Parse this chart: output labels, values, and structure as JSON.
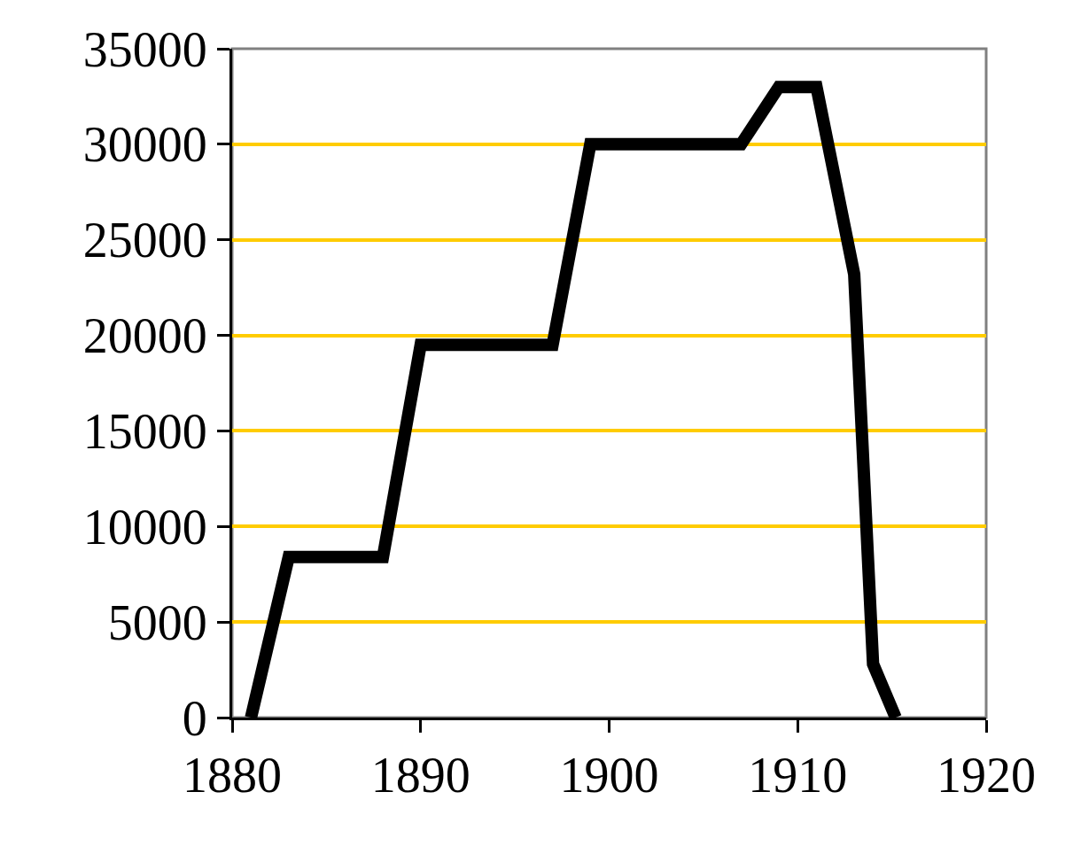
{
  "chart_data": {
    "type": "line",
    "x": [
      1881,
      1883,
      1888,
      1890,
      1897,
      1899,
      1907,
      1909,
      1911,
      1913,
      1914,
      1915.2
    ],
    "values": [
      0,
      8400,
      8400,
      19500,
      19500,
      30000,
      30000,
      33000,
      33000,
      23200,
      2800,
      0
    ],
    "color": "#000000",
    "xlim": [
      1880,
      1920
    ],
    "xticks": [
      1880,
      1890,
      1900,
      1910,
      1920
    ],
    "ylim": [
      0,
      35000
    ],
    "yticks": [
      0,
      5000,
      10000,
      15000,
      20000,
      25000,
      30000,
      35000
    ],
    "grid": "y",
    "marker": "none",
    "line_style": "solid",
    "legend": false
  }
}
